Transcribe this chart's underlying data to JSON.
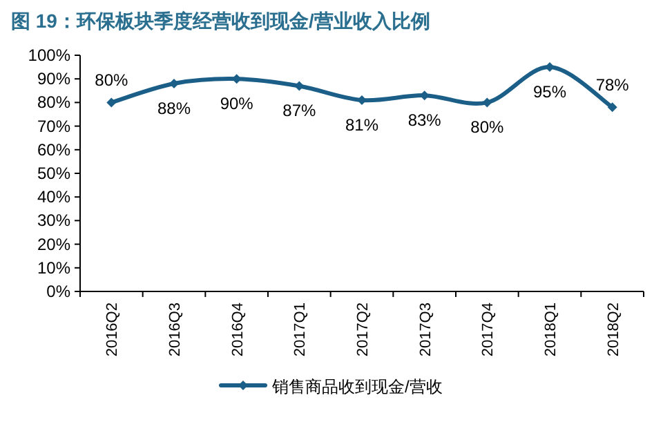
{
  "chart_data": {
    "type": "line",
    "title": "图 19：环保板块季度经营收到现金/营业收入比例",
    "categories": [
      "2016Q2",
      "2016Q3",
      "2016Q4",
      "2017Q1",
      "2017Q2",
      "2017Q3",
      "2017Q4",
      "2018Q1",
      "2018Q2"
    ],
    "series": [
      {
        "name": "销售商品收到现金/营收",
        "color": "#1b5f88",
        "values": [
          80,
          88,
          90,
          87,
          81,
          83,
          80,
          95,
          78
        ],
        "value_labels": [
          "80%",
          "88%",
          "90%",
          "87%",
          "81%",
          "83%",
          "80%",
          "95%",
          "78%"
        ]
      }
    ],
    "ylim": [
      0,
      100
    ],
    "yticks": [
      {
        "value": 0,
        "label": "0%"
      },
      {
        "value": 10,
        "label": "10%"
      },
      {
        "value": 20,
        "label": "20%"
      },
      {
        "value": 30,
        "label": "30%"
      },
      {
        "value": 40,
        "label": "40%"
      },
      {
        "value": 50,
        "label": "50%"
      },
      {
        "value": 60,
        "label": "60%"
      },
      {
        "value": 70,
        "label": "70%"
      },
      {
        "value": 80,
        "label": "80%"
      },
      {
        "value": 90,
        "label": "90%"
      },
      {
        "value": 100,
        "label": "100%"
      }
    ],
    "marker": "diamond",
    "legend": "bottom",
    "grid": false
  }
}
